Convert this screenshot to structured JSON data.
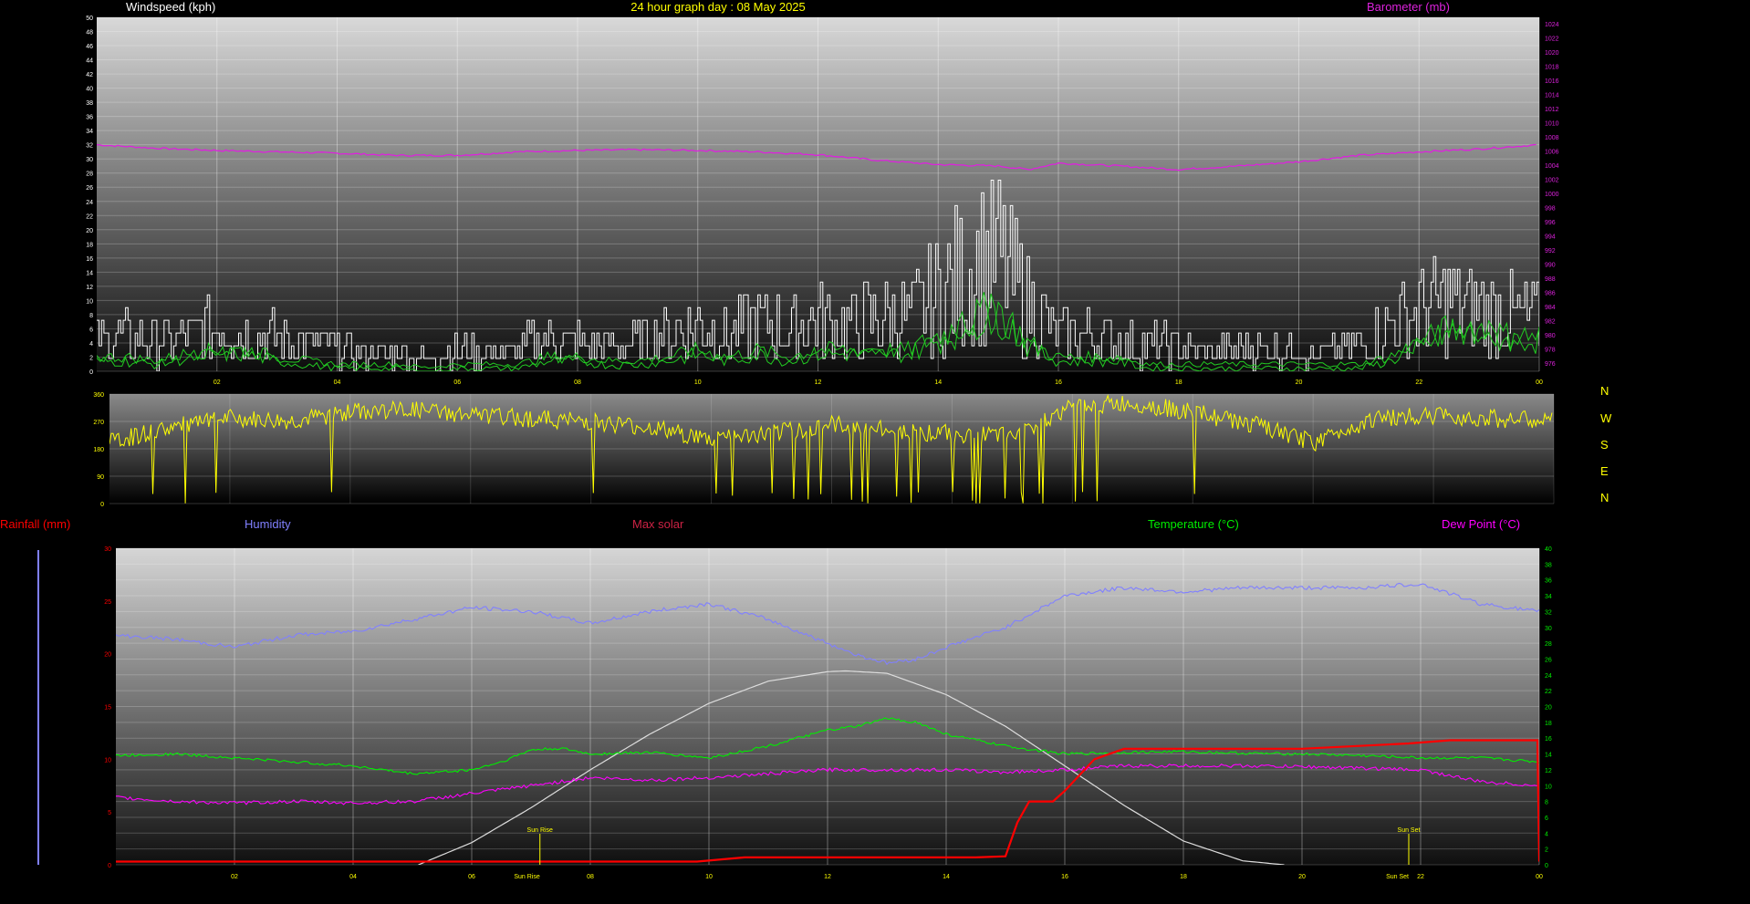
{
  "header": {
    "title": "24 hour graph day : 08 May 2025",
    "wind_label": "Windspeed (kph)",
    "baro_label": "Barometer (mb)"
  },
  "direction_compass": [
    "N",
    "W",
    "S",
    "E",
    "N"
  ],
  "bottom_labels": {
    "rain": "Rainfall (mm)",
    "humidity": "Humidity",
    "solar": "Max solar",
    "temperature": "Temperature (°C)",
    "dewpoint": "Dew Point (°C)"
  },
  "sun_markers": {
    "rise": "Sun Rise",
    "set": "Sun Set"
  },
  "colors": {
    "wind_gust": "#ffffff",
    "wind_avg": "#22cc22",
    "barometer": "#dd22dd",
    "direction": "#ffff00",
    "humidity": "#8080ff",
    "temperature": "#00ee00",
    "dewpoint": "#ff00ff",
    "rainfall": "#ff0000",
    "solar": "#dddddd",
    "title": "#ffff00"
  },
  "chart_data": [
    {
      "type": "line",
      "name": "wind-barometer",
      "x_tick_labels": [
        "02",
        "04",
        "06",
        "08",
        "10",
        "12",
        "14",
        "16",
        "18",
        "20",
        "22",
        "00"
      ],
      "x_range": [
        0,
        24
      ],
      "y_left_label": "Windspeed (kph)",
      "y_left_range": [
        0,
        50
      ],
      "y_left_ticks": [
        0,
        2,
        4,
        6,
        8,
        10,
        12,
        14,
        16,
        18,
        20,
        22,
        24,
        26,
        28,
        30,
        32,
        34,
        36,
        38,
        40,
        42,
        44,
        46,
        48,
        50
      ],
      "y_right_label": "Barometer (mb)",
      "y_right_range": [
        975,
        1025
      ],
      "y_right_ticks": [
        976,
        978,
        980,
        982,
        984,
        986,
        988,
        990,
        992,
        994,
        996,
        998,
        1000,
        1002,
        1004,
        1006,
        1008,
        1010,
        1012,
        1014,
        1016,
        1018,
        1020,
        1022,
        1024
      ],
      "series": [
        {
          "key": "barometer",
          "x": [
            0,
            1,
            2,
            3,
            4,
            5,
            6,
            7,
            8,
            9,
            10,
            11,
            12,
            13,
            14,
            15,
            15.5,
            16,
            17,
            18,
            19,
            20,
            21,
            22,
            23,
            24
          ],
          "values": [
            1007,
            1006.5,
            1006.2,
            1006,
            1005.8,
            1005.5,
            1005.5,
            1006,
            1006.2,
            1006.3,
            1006.2,
            1006,
            1005.6,
            1004.8,
            1004.2,
            1004,
            1003.5,
            1004.4,
            1004,
            1003.5,
            1004,
            1004.6,
            1005.5,
            1006,
            1006.4,
            1007
          ]
        },
        {
          "key": "wind_gust",
          "x": [
            0,
            0.5,
            1,
            1.5,
            2,
            2.5,
            3,
            3.5,
            4,
            4.5,
            5,
            5.5,
            6,
            6.5,
            7,
            7.5,
            8,
            8.5,
            9,
            9.5,
            10,
            10.5,
            11,
            11.5,
            12,
            12.5,
            13,
            13.5,
            14,
            14.5,
            15,
            15.5,
            16,
            16.5,
            17,
            17.5,
            18,
            18.5,
            19,
            19.5,
            20,
            20.5,
            21,
            21.5,
            22,
            22.5,
            23,
            23.5,
            24
          ],
          "values": [
            5,
            6,
            5,
            6,
            8,
            7,
            6,
            5,
            4,
            3,
            3,
            2,
            4,
            3,
            4,
            6,
            5,
            4,
            5,
            7,
            8,
            6,
            9,
            7,
            9,
            8,
            10,
            9,
            14,
            18,
            20,
            12,
            6,
            7,
            5,
            5,
            4,
            3,
            4,
            4,
            3,
            3,
            5,
            8,
            11,
            12,
            11,
            10,
            9
          ]
        },
        {
          "key": "wind_avg",
          "x": [
            0,
            0.5,
            1,
            1.5,
            2,
            2.5,
            3,
            3.5,
            4,
            4.5,
            5,
            5.5,
            6,
            6.5,
            7,
            7.5,
            8,
            8.5,
            9,
            9.5,
            10,
            10.5,
            11,
            11.5,
            12,
            12.5,
            13,
            13.5,
            14,
            14.5,
            15,
            15.5,
            16,
            16.5,
            17,
            17.5,
            18,
            18.5,
            19,
            19.5,
            20,
            20.5,
            21,
            21.5,
            22,
            22.5,
            23,
            23.5,
            24
          ],
          "values": [
            2,
            2,
            1.5,
            2.5,
            3,
            3,
            2,
            1.5,
            1,
            1,
            1,
            0.5,
            1,
            1,
            1,
            2,
            2,
            1.5,
            1.5,
            2,
            3,
            2,
            3,
            2,
            3,
            3,
            3,
            3,
            5,
            7,
            9,
            4,
            2,
            2,
            2,
            1,
            1,
            1,
            1,
            1,
            1,
            1,
            1,
            2,
            4,
            6,
            6,
            5,
            5
          ]
        }
      ]
    },
    {
      "type": "line",
      "name": "wind-direction",
      "x_tick_labels": [
        "02",
        "04",
        "06",
        "08",
        "10",
        "12",
        "14",
        "16",
        "18",
        "20",
        "22",
        "00"
      ],
      "x_range": [
        0,
        24
      ],
      "y_range": [
        0,
        360
      ],
      "y_ticks": [
        0,
        90,
        180,
        270,
        360
      ],
      "series": [
        {
          "key": "direction",
          "x": [
            0,
            1,
            2,
            3,
            4,
            5,
            6,
            7,
            8,
            9,
            10,
            11,
            12,
            13,
            14,
            15,
            16,
            17,
            18,
            19,
            20,
            21,
            22,
            23,
            24
          ],
          "values": [
            200,
            250,
            280,
            270,
            300,
            310,
            290,
            280,
            270,
            250,
            210,
            230,
            260,
            240,
            230,
            220,
            320,
            330,
            300,
            260,
            200,
            280,
            290,
            280,
            270
          ]
        }
      ]
    },
    {
      "type": "line",
      "name": "temperature-humidity-rain-solar",
      "x_tick_labels": [
        "02",
        "04",
        "06",
        "08",
        "10",
        "12",
        "14",
        "16",
        "18",
        "20",
        "22",
        "00"
      ],
      "x_range": [
        0,
        24
      ],
      "y_left_label": "Rainfall (mm)",
      "y_left_range": [
        0,
        30
      ],
      "y_left_ticks": [
        0,
        5,
        10,
        15,
        20,
        25,
        30
      ],
      "y_right_label": "Temperature (°C)",
      "y_right_range": [
        0,
        40
      ],
      "y_right_ticks": [
        0,
        2,
        4,
        6,
        8,
        10,
        12,
        14,
        16,
        18,
        20,
        22,
        24,
        26,
        28,
        30,
        32,
        34,
        36,
        38,
        40
      ],
      "sun_rise_hour": 7.15,
      "sun_set_hour": 21.8,
      "series": [
        {
          "key": "humidity",
          "axis": "right",
          "x": [
            0,
            1,
            2,
            3,
            4,
            5,
            6,
            7,
            8,
            9,
            10,
            11,
            12,
            12.5,
            13,
            13.5,
            14,
            15,
            16,
            17,
            18,
            19,
            20,
            21,
            22,
            23,
            24
          ],
          "values": [
            29,
            28.5,
            27.5,
            29,
            29.5,
            31,
            32.5,
            32,
            30.5,
            32,
            33,
            31,
            28,
            26.5,
            25.5,
            26,
            27.5,
            30,
            34,
            35,
            34.5,
            35,
            35,
            35,
            35.5,
            33,
            32
          ]
        },
        {
          "key": "temperature",
          "axis": "right",
          "x": [
            0,
            1,
            2,
            3,
            4,
            5,
            6,
            6.5,
            7,
            7.5,
            8,
            9,
            10,
            11,
            12,
            12.5,
            13,
            13.5,
            14,
            15,
            16,
            17,
            18,
            19,
            20,
            21,
            22,
            23,
            24
          ],
          "values": [
            13.8,
            14,
            13.5,
            13,
            12.5,
            11.5,
            12,
            13,
            14.5,
            14.7,
            14,
            14.2,
            13.5,
            15,
            17,
            17.5,
            18.5,
            18,
            16.5,
            15,
            14,
            14.2,
            14.3,
            14.1,
            14,
            13.8,
            13.5,
            13.5,
            13
          ]
        },
        {
          "key": "dewpoint",
          "axis": "right",
          "x": [
            0,
            1,
            2,
            3,
            4,
            5,
            6,
            7,
            8,
            9,
            10,
            11,
            12,
            13,
            14,
            15,
            16,
            17,
            18,
            19,
            20,
            21,
            22,
            23,
            24
          ],
          "values": [
            8.5,
            8,
            7.8,
            8,
            7.8,
            8,
            9,
            10,
            11,
            10.7,
            11,
            11.5,
            12,
            12,
            12,
            11.7,
            12,
            12.5,
            12.5,
            12.5,
            12.4,
            12.2,
            12,
            10.5,
            10
          ]
        },
        {
          "key": "rainfall",
          "axis": "left",
          "x": [
            0,
            9.8,
            10.6,
            14.5,
            15,
            15.2,
            15.4,
            15.8,
            16,
            16.5,
            17,
            18,
            20,
            21.8,
            22.5,
            23.97,
            24
          ],
          "values": [
            0.3,
            0.3,
            0.7,
            0.7,
            0.8,
            4,
            6,
            6,
            7,
            10,
            11,
            11,
            11,
            11.5,
            11.8,
            11.8,
            0.3
          ]
        },
        {
          "key": "solar",
          "axis": "right",
          "note": "Max solar",
          "x": [
            5.1,
            6,
            7,
            8,
            9,
            10,
            11,
            12,
            12.3,
            13,
            14,
            15,
            16,
            17,
            18,
            19,
            19.7
          ],
          "values": [
            0,
            2.8,
            7.2,
            12,
            16.5,
            20.4,
            23.2,
            24.4,
            24.5,
            24.2,
            21.5,
            17.5,
            12.5,
            7.5,
            3,
            0.5,
            0
          ]
        }
      ]
    }
  ]
}
